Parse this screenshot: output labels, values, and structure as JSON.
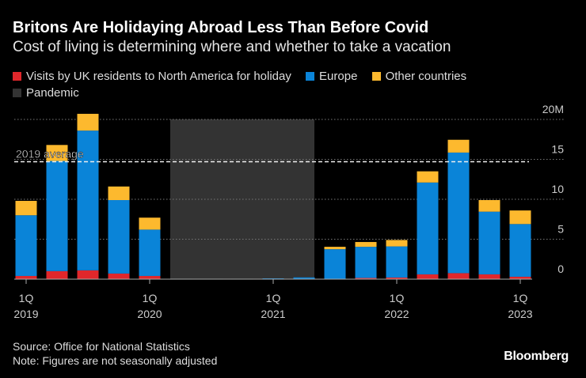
{
  "title": "Britons Are Holidaying Abroad Less Than Before Covid",
  "subtitle": "Cost of living is determining where and whether to take a vacation",
  "source": "Source: Office for National Statistics",
  "note": "Note: Figures are not seasonally adjusted",
  "brand": "Bloomberg",
  "colors": {
    "north_america": "#e0272b",
    "europe": "#0a84d8",
    "other": "#fdb92e",
    "pandemic": "#333333"
  },
  "chart_data": {
    "type": "bar",
    "stacked": true,
    "title": "Britons Are Holidaying Abroad Less Than Before Covid",
    "ylabel": "",
    "ylim": [
      0,
      20
    ],
    "y_unit": "M",
    "y_ticks": [
      "0",
      "5",
      "10",
      "15",
      "20M"
    ],
    "y_tick_values": [
      0,
      5,
      10,
      15,
      20
    ],
    "categories": [
      "2019Q1",
      "2019Q2",
      "2019Q3",
      "2019Q4",
      "2020Q1",
      "2020Q2",
      "2020Q3",
      "2020Q4",
      "2021Q1",
      "2021Q2",
      "2021Q3",
      "2021Q4",
      "2022Q1",
      "2022Q2",
      "2022Q3",
      "2022Q4",
      "2023Q1"
    ],
    "x_tick_labels": [
      {
        "index": 0,
        "q": "1Q",
        "year": "2019"
      },
      {
        "index": 4,
        "q": "1Q",
        "year": "2020"
      },
      {
        "index": 8,
        "q": "1Q",
        "year": "2021"
      },
      {
        "index": 12,
        "q": "1Q",
        "year": "2022"
      },
      {
        "index": 16,
        "q": "1Q",
        "year": "2023"
      }
    ],
    "series": [
      {
        "name": "Visits by UK residents to North America for holiday",
        "key": "north_america",
        "values": [
          0.4,
          1.0,
          1.1,
          0.7,
          0.4,
          0,
          0,
          0,
          0,
          0.02,
          0.05,
          0.15,
          0.2,
          0.6,
          0.75,
          0.6,
          0.3
        ]
      },
      {
        "name": "Europe",
        "key": "europe",
        "values": [
          7.6,
          13.8,
          17.5,
          9.2,
          5.8,
          0.05,
          0.05,
          0.05,
          0.1,
          0.2,
          3.7,
          3.9,
          3.9,
          11.5,
          15.1,
          7.85,
          6.6
        ]
      },
      {
        "name": "Other countries",
        "key": "other",
        "values": [
          1.8,
          2.0,
          2.1,
          1.7,
          1.5,
          0,
          0,
          0,
          0,
          0,
          0.3,
          0.6,
          0.8,
          1.4,
          1.6,
          1.45,
          1.7
        ]
      }
    ],
    "pandemic": {
      "label": "Pandemic",
      "start_index": 5,
      "end_index": 9
    },
    "reference_line": {
      "label": "2019 average",
      "value": 14.7
    },
    "legend_position": "top-left"
  }
}
